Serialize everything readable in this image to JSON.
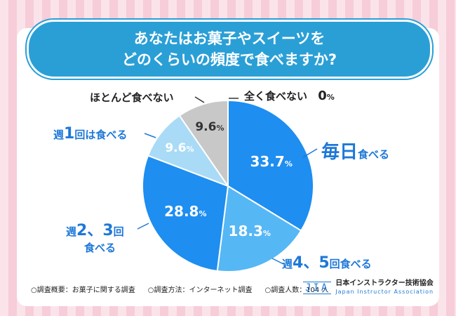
{
  "title": {
    "line1": "あなたはお菓子やスイーツを",
    "line2": "どのくらいの頻度で食べますか?"
  },
  "chart_data": {
    "type": "pie",
    "title": "あなたはお菓子やスイーツをどのくらいの頻度で食べますか?",
    "unit": "%",
    "slices": [
      {
        "label": "毎日食べる",
        "value": 33.7,
        "color": "#1e8ef0",
        "text_color": "#ffffff"
      },
      {
        "label": "週4、5回食べる",
        "value": 18.3,
        "color": "#56b7f5",
        "text_color": "#ffffff"
      },
      {
        "label": "週2、3回食べる",
        "value": 28.8,
        "color": "#1e8ef0",
        "text_color": "#ffffff"
      },
      {
        "label": "週1回は食べる",
        "value": 9.6,
        "color": "#a9dbf7",
        "text_color": "#ffffff"
      },
      {
        "label": "ほとんど食べない",
        "value": 9.6,
        "color": "#c8c8c8",
        "text_color": "#333333"
      },
      {
        "label": "全く食べない",
        "value": 0,
        "color": "#c8c8c8",
        "text_color": "#333333"
      }
    ],
    "value_labels": [
      "33.7",
      "18.3",
      "28.8",
      "9.6",
      "9.6"
    ]
  },
  "labels": {
    "daily": {
      "big": "毎日",
      "small": "食べる"
    },
    "w45": {
      "prefix": "週",
      "big": "4、5",
      "suffix": "回食べる"
    },
    "w23": {
      "prefix": "週",
      "big": "2、3",
      "suffix": "回",
      "line2": "食べる"
    },
    "w1": {
      "prefix": "週",
      "big": "1",
      "suffix": "回は食べる"
    },
    "rarely": "ほとんど食べない",
    "never": {
      "text": "全く食べない",
      "value": "0",
      "unit": "%"
    }
  },
  "footer": {
    "overview": "○調査概要：お菓子に関する調査",
    "method": "○調査方法：インターネット調査",
    "count": "○調査人数：104 人"
  },
  "logo": {
    "mark": "JIA",
    "name_jp": "日本インストラクター技術協会",
    "name_en": "Japan Instructor Association"
  },
  "colors": {
    "accent": "#1e78d8",
    "title_bg": "#2a9fd6"
  }
}
